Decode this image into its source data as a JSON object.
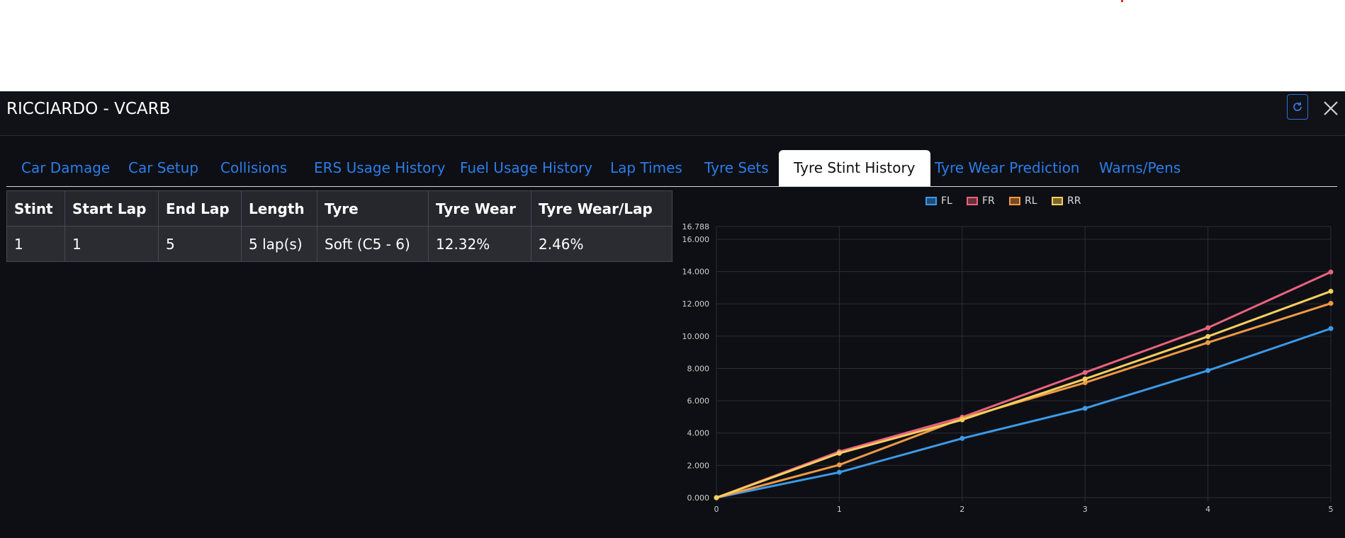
{
  "header": {
    "title": "RICCIARDO - VCARB"
  },
  "tabs": [
    {
      "label": "Car Damage",
      "active": false
    },
    {
      "label": "Car Setup",
      "active": false
    },
    {
      "label": "Collisions",
      "active": false
    },
    {
      "label": "ERS Usage History",
      "active": false
    },
    {
      "label": "Fuel Usage History",
      "active": false
    },
    {
      "label": "Lap Times",
      "active": false
    },
    {
      "label": "Tyre Sets",
      "active": false
    },
    {
      "label": "Tyre Stint History",
      "active": true
    },
    {
      "label": "Tyre Wear Prediction",
      "active": false
    },
    {
      "label": "Warns/Pens",
      "active": false
    }
  ],
  "table": {
    "headers": [
      "Stint",
      "Start Lap",
      "End Lap",
      "Length",
      "Tyre",
      "Tyre Wear",
      "Tyre Wear/Lap"
    ],
    "rows": [
      [
        "1",
        "1",
        "5",
        "5 lap(s)",
        "Soft (C5 - 6)",
        "12.32%",
        "2.46%"
      ]
    ]
  },
  "chart_data": {
    "type": "line",
    "x": [
      0,
      1,
      2,
      3,
      4,
      5
    ],
    "ylim": [
      0,
      16.788
    ],
    "y_ticks": [
      "16.788",
      "16.000",
      "14.000",
      "12.000",
      "10.000",
      "8.000",
      "6.000",
      "4.000",
      "2.000",
      "0.000"
    ],
    "x_ticks": [
      "0",
      "1",
      "2",
      "3",
      "4",
      "5"
    ],
    "series": [
      {
        "name": "FL",
        "color": "#3b9ae8",
        "values": [
          0,
          1.57,
          3.67,
          5.53,
          7.87,
          10.47
        ]
      },
      {
        "name": "FR",
        "color": "#e9637f",
        "values": [
          0,
          2.85,
          4.98,
          7.75,
          10.52,
          13.97
        ]
      },
      {
        "name": "RL",
        "color": "#ef9a45",
        "values": [
          0,
          2.03,
          4.9,
          7.12,
          9.6,
          12.03
        ]
      },
      {
        "name": "RR",
        "color": "#f5cf5e",
        "values": [
          0,
          2.75,
          4.82,
          7.35,
          9.98,
          12.78
        ]
      }
    ],
    "grid": true,
    "legend": "top-center"
  }
}
